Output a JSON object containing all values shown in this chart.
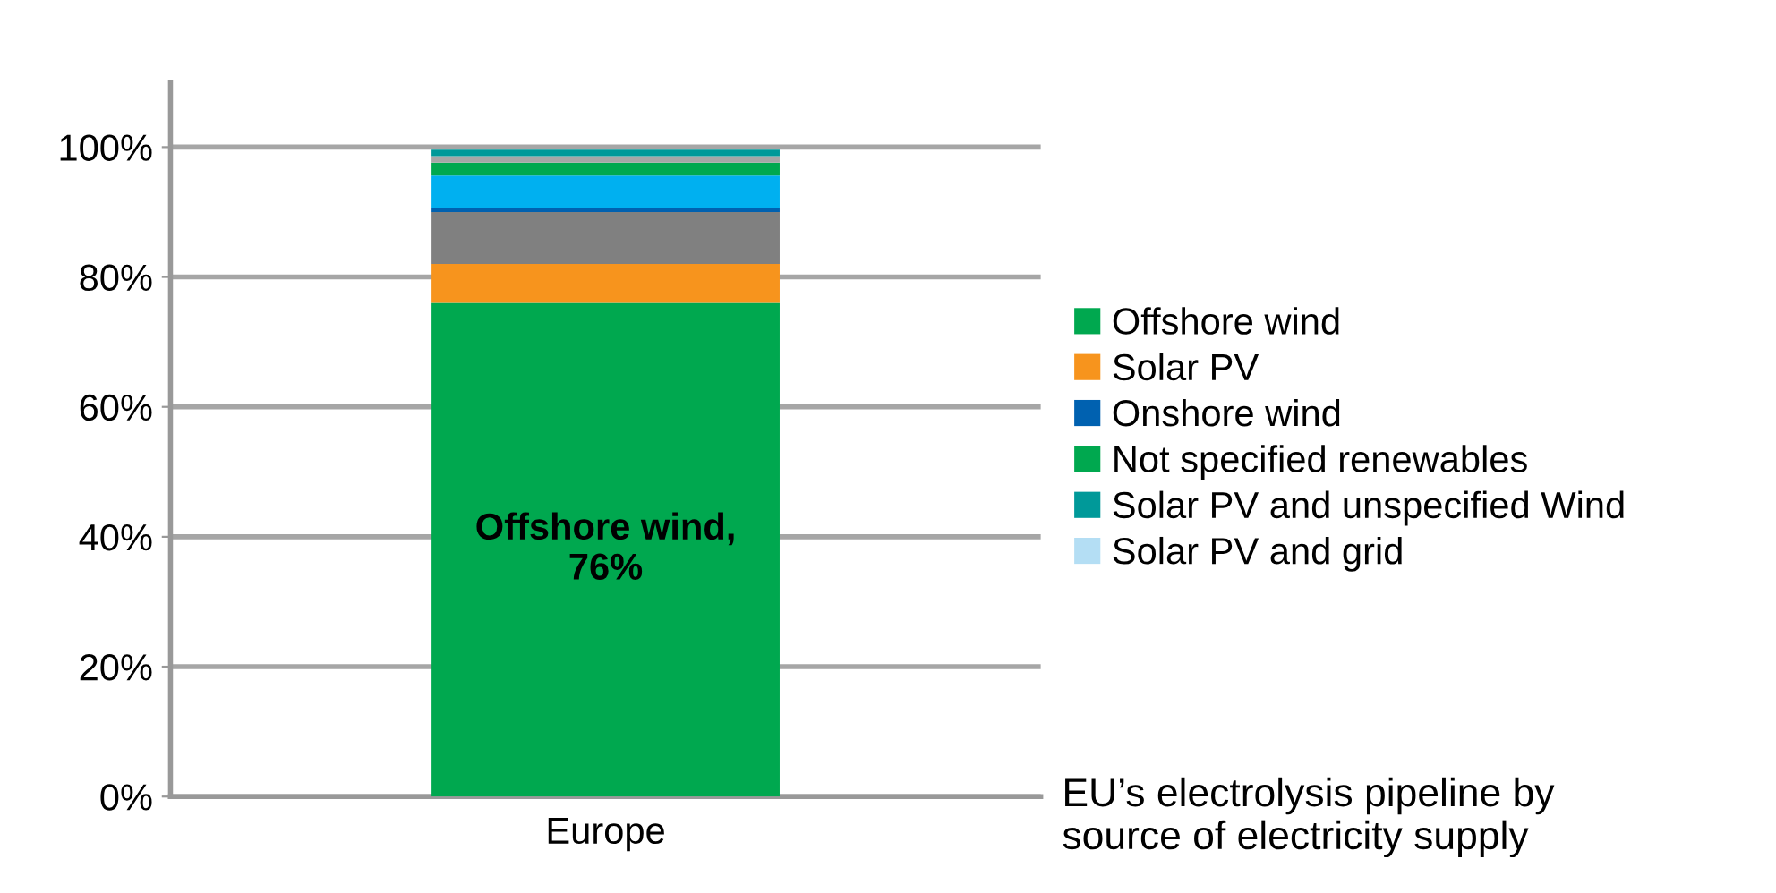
{
  "chart_data": {
    "type": "bar",
    "stacked": true,
    "categories": [
      "Europe"
    ],
    "series": [
      {
        "name": "Offshore wind",
        "color": "#00a84f",
        "values": [
          76
        ]
      },
      {
        "name": "Solar PV",
        "color": "#f7941d",
        "values": [
          6
        ]
      },
      {
        "color": "#808080",
        "values": [
          8
        ]
      },
      {
        "name": "Onshore wind",
        "color": "#0061b0",
        "values": [
          0.6
        ]
      },
      {
        "color": "#00b0f0",
        "values": [
          5
        ]
      },
      {
        "name": "Not specified renewables",
        "color": "#00a84f",
        "values": [
          2
        ]
      },
      {
        "color": "#a6a6a6",
        "values": [
          1
        ]
      },
      {
        "name": "Solar PV and unspecified Wind",
        "color": "#009999",
        "values": [
          1
        ]
      },
      {
        "name": "Solar PV and grid",
        "color": "#b4def4",
        "values": [
          null
        ]
      }
    ],
    "ylim": [
      0,
      110
    ],
    "yticks": [
      {
        "value": 0,
        "label": "0%"
      },
      {
        "value": 20,
        "label": "20%"
      },
      {
        "value": 40,
        "label": "40%"
      },
      {
        "value": 60,
        "label": "60%"
      },
      {
        "value": 80,
        "label": "80%"
      },
      {
        "value": 100,
        "label": "100%"
      }
    ],
    "grid": "y",
    "legend": "right",
    "annotations": [
      "Offshore wind,\n76%",
      "EU’s electrolysis pipeline by\nsource of electricity supply"
    ]
  }
}
